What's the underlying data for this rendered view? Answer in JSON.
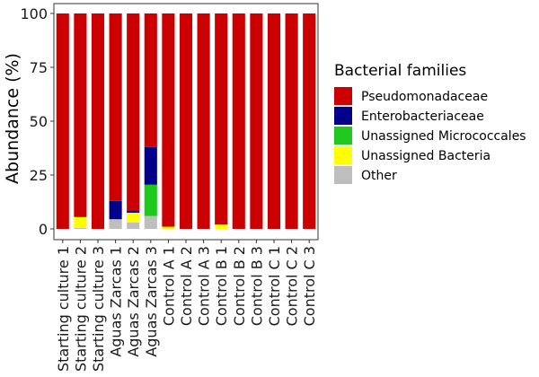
{
  "chart_data": {
    "type": "bar",
    "stacked": true,
    "ylabel": "Abundance (%)",
    "ylim": [
      0,
      100
    ],
    "yticks": [
      0,
      25,
      50,
      75,
      100
    ],
    "categories": [
      "Starting culture 1",
      "Starting culture 2",
      "Starting culture 3",
      "Aguas Zarcas 1",
      "Aguas Zarcas 2",
      "Aguas Zarcas 3",
      "Control A 1",
      "Control A 2",
      "Control A 3",
      "Control B 1",
      "Control B 2",
      "Control B 3",
      "Control C 1",
      "Control C 2",
      "Control C 3"
    ],
    "legend": {
      "title": "Bacterial families",
      "position": "right"
    },
    "grid": false,
    "series": [
      {
        "name": "Other",
        "color": "#BEBEBE",
        "values": [
          0,
          0.5,
          0,
          4.5,
          3,
          6,
          0,
          0,
          0,
          0,
          0,
          0,
          0,
          0,
          0
        ]
      },
      {
        "name": "Unassigned Bacteria",
        "color": "#FFFF00",
        "values": [
          0,
          5,
          0,
          0,
          4.5,
          0,
          1,
          0,
          0,
          2,
          0,
          0,
          0,
          0,
          0
        ]
      },
      {
        "name": "Unassigned Micrococcales",
        "color": "#1EC81E",
        "values": [
          0,
          0,
          0,
          0,
          0,
          14.5,
          0,
          0,
          0,
          0,
          0,
          0,
          0,
          0,
          0
        ]
      },
      {
        "name": "Enterobacteriaceae",
        "color": "#00008B",
        "values": [
          0,
          0,
          0,
          8.5,
          1,
          17.5,
          0,
          0,
          0,
          0,
          0,
          0,
          0,
          0,
          0
        ]
      },
      {
        "name": "Pseudomonadaceae",
        "color": "#CC0000",
        "values": [
          100,
          94.5,
          100,
          87,
          91.5,
          62,
          99,
          100,
          100,
          98,
          100,
          100,
          100,
          100,
          100
        ]
      }
    ],
    "legend_order": [
      "Pseudomonadaceae",
      "Enterobacteriaceae",
      "Unassigned Micrococcales",
      "Unassigned Bacteria",
      "Other"
    ]
  }
}
